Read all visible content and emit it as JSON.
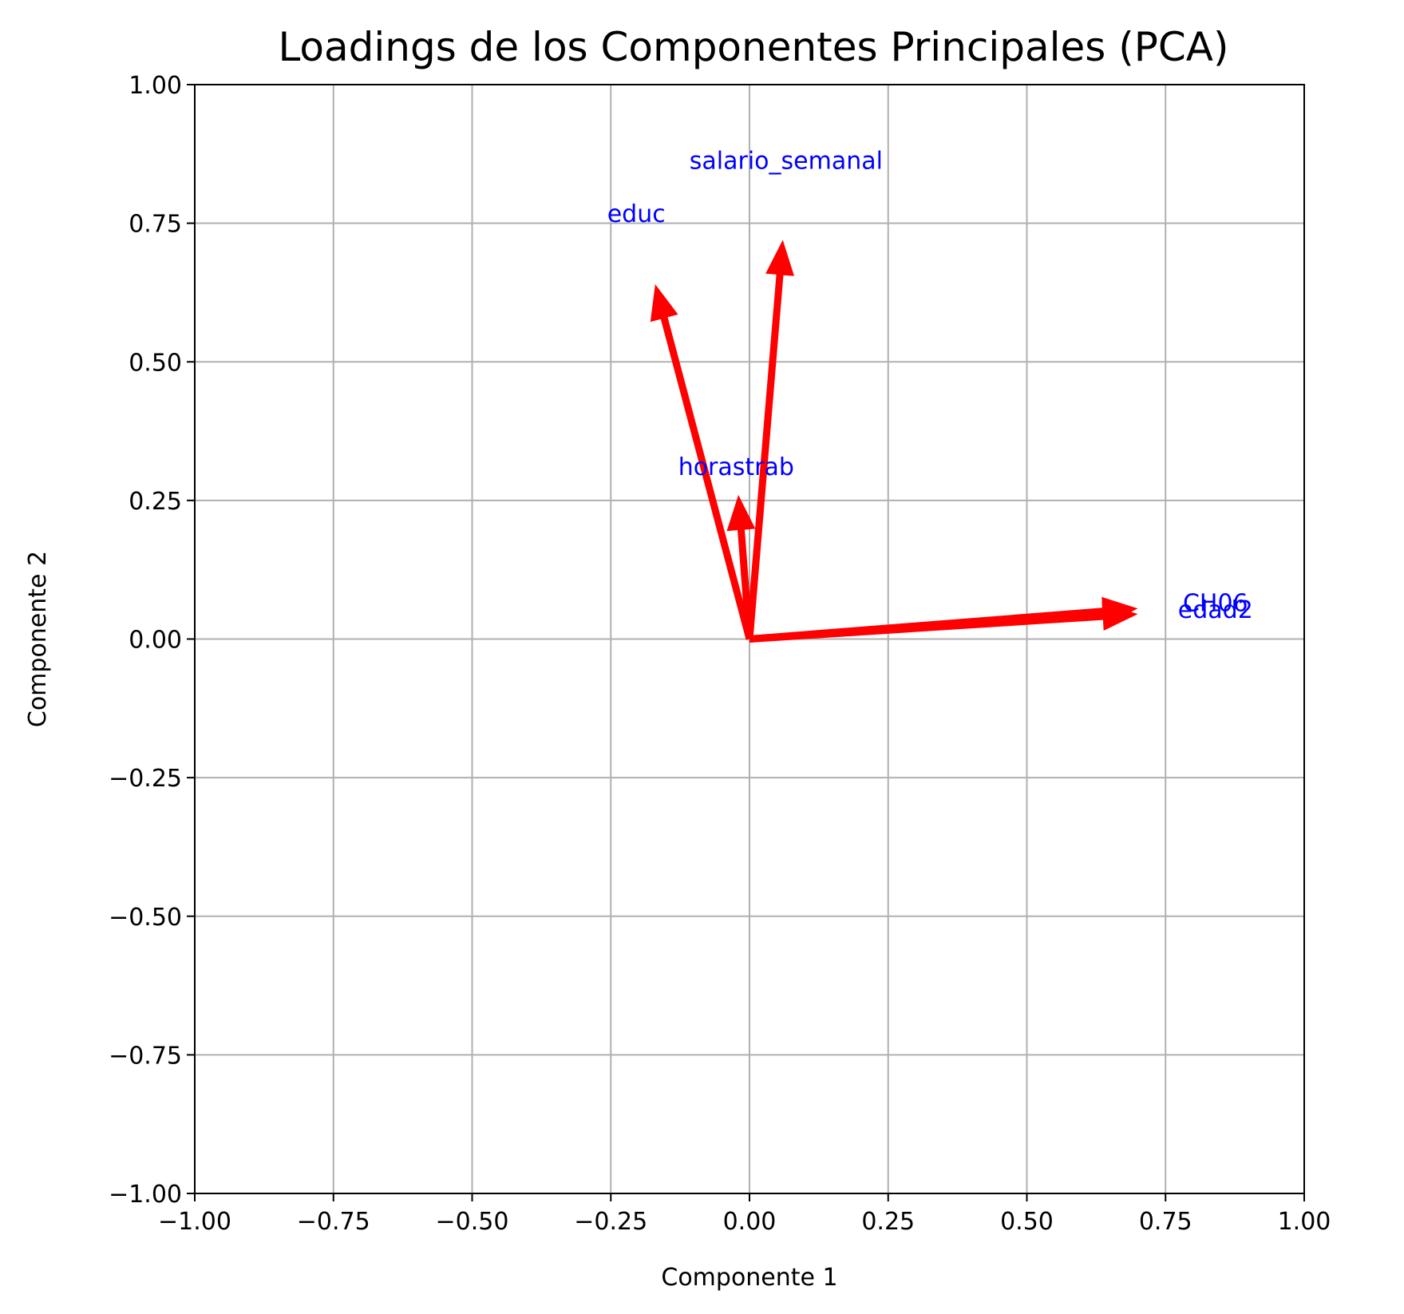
{
  "chart_data": {
    "type": "scatter",
    "subtype": "pca-loadings-biplot",
    "title": "Loadings de los Componentes Principales (PCA)",
    "xlabel": "Componente 1",
    "ylabel": "Componente 2",
    "xlim": [
      -1.0,
      1.0
    ],
    "ylim": [
      -1.0,
      1.0
    ],
    "x_ticks": [
      -1.0,
      -0.75,
      -0.5,
      -0.25,
      0.0,
      0.25,
      0.5,
      0.75,
      1.0
    ],
    "y_ticks": [
      -1.0,
      -0.75,
      -0.5,
      -0.25,
      0.0,
      0.25,
      0.5,
      0.75,
      1.0
    ],
    "x_tick_labels": [
      "−1.00",
      "−0.75",
      "−0.50",
      "−0.25",
      "0.00",
      "0.25",
      "0.50",
      "0.75",
      "1.00"
    ],
    "y_tick_labels": [
      "−1.00",
      "−0.75",
      "−0.50",
      "−0.25",
      "0.00",
      "0.25",
      "0.50",
      "0.75",
      "1.00"
    ],
    "grid": true,
    "arrow_color": "#ff0000",
    "label_color": "#0000ff",
    "vectors": [
      {
        "name": "salario_semanal",
        "x": 0.06,
        "y": 0.72,
        "label_x": 0.066,
        "label_y": 0.864
      },
      {
        "name": "educ",
        "x": -0.17,
        "y": 0.64,
        "label_x": -0.204,
        "label_y": 0.768
      },
      {
        "name": "horastrab",
        "x": -0.02,
        "y": 0.26,
        "label_x": -0.024,
        "label_y": 0.312
      },
      {
        "name": "CH06",
        "x": 0.7,
        "y": 0.055,
        "label_x": 0.84,
        "label_y": 0.066
      },
      {
        "name": "edad2",
        "x": 0.7,
        "y": 0.045,
        "label_x": 0.84,
        "label_y": 0.054
      }
    ]
  }
}
